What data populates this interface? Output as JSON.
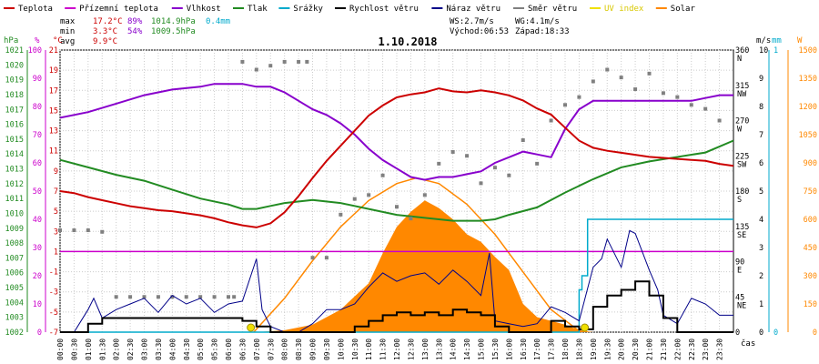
{
  "chart_data": {
    "type": "line",
    "title": "1.10.2018",
    "legend": [
      {
        "name": "Teplota",
        "color": "#cc0000"
      },
      {
        "name": "Přízemní teplota",
        "color": "#cc00cc"
      },
      {
        "name": "Vlhkost",
        "color": "#8800cc"
      },
      {
        "name": "Tlak",
        "color": "#228b22"
      },
      {
        "name": "Srážky",
        "color": "#00aacc"
      },
      {
        "name": "Rychlost větru",
        "color": "#000000"
      },
      {
        "name": "Náraz větru",
        "color": "#000088"
      },
      {
        "name": "Směr větru",
        "color": "#808080"
      },
      {
        "name": "UV index",
        "color": "#f0e000"
      },
      {
        "name": "Solar",
        "color": "#ff8800"
      }
    ],
    "stats": {
      "max": {
        "label": "max",
        "temp": "17.2°C",
        "hum": "89%",
        "press": "1014.9hPa",
        "rain": "0.4mm"
      },
      "min": {
        "label": "min",
        "temp": "3.3°C",
        "hum": "54%",
        "press": "1009.5hPa"
      },
      "avg": {
        "label": "avg",
        "temp": "9.9°C"
      },
      "ws": "WS:2.7m/s",
      "wg": "WG:4.1m/s",
      "sunrise": "Východ:06:53",
      "sunset": "Západ:18:33"
    },
    "x_axis_label": "čas",
    "x_ticks": [
      "00:00",
      "00:30",
      "01:00",
      "01:30",
      "02:00",
      "02:30",
      "03:00",
      "03:30",
      "04:00",
      "04:30",
      "05:00",
      "05:30",
      "06:00",
      "06:30",
      "07:00",
      "07:30",
      "08:00",
      "08:30",
      "09:00",
      "09:30",
      "10:00",
      "10:30",
      "11:00",
      "11:30",
      "12:00",
      "12:30",
      "13:00",
      "13:30",
      "14:00",
      "14:30",
      "15:00",
      "15:30",
      "16:00",
      "16:30",
      "17:00",
      "17:30",
      "18:00",
      "18:30",
      "19:00",
      "19:30",
      "20:00",
      "20:30",
      "21:00",
      "21:30",
      "22:00",
      "22:30",
      "23:00",
      "23:30"
    ],
    "axes": {
      "pressure": {
        "unit": "hPa",
        "ticks": [
          "1021",
          "1020",
          "1019",
          "1018",
          "1017",
          "1016",
          "1015",
          "1014",
          "1013",
          "1012",
          "1011",
          "1010",
          "1009",
          "1008",
          "1007",
          "1006",
          "1005",
          "1004",
          "1003",
          "1002"
        ]
      },
      "humidity": {
        "unit": "%",
        "ticks": [
          "100",
          "90",
          "80",
          "70",
          "60",
          "50",
          "40",
          "30",
          "20",
          "10",
          "0"
        ]
      },
      "temperature": {
        "unit": "°C",
        "ticks": [
          "21",
          "19",
          "17",
          "15",
          "13",
          "11",
          "9",
          "7",
          "5",
          "3",
          "1",
          "-1",
          "-3",
          "-5",
          "-7"
        ]
      },
      "direction": {
        "ticks": [
          "360",
          "N",
          "315",
          "NW",
          "270",
          "W",
          "225",
          "SW",
          "180",
          "S",
          "135",
          "SE",
          "90",
          "E",
          "45",
          "NE",
          "0"
        ]
      },
      "speed": {
        "unit": "m/s",
        "ticks": [
          "10",
          "9",
          "8",
          "7",
          "6",
          "5",
          "4",
          "3",
          "2",
          "1",
          "0"
        ]
      },
      "rain": {
        "unit": "mm",
        "ticks": [
          "1",
          "0"
        ]
      },
      "solar": {
        "unit": "W",
        "ticks": [
          "1500",
          "1350",
          "1200",
          "1050",
          "900",
          "750",
          "600",
          "450",
          "300",
          "150",
          "0"
        ]
      }
    },
    "series": {
      "teplota": {
        "x": [
          0,
          0.5,
          1,
          1.5,
          2,
          2.5,
          3,
          3.5,
          4,
          4.5,
          5,
          5.5,
          6,
          6.5,
          7,
          7.5,
          8,
          8.5,
          9,
          9.5,
          10,
          10.5,
          11,
          11.5,
          12,
          12.5,
          13,
          13.5,
          14,
          14.5,
          15,
          15.5,
          16,
          16.5,
          17,
          17.5,
          18,
          18.5,
          19,
          19.5,
          20,
          20.5,
          21,
          21.5,
          22,
          22.5,
          23,
          23.5,
          24
        ],
        "y": [
          7.0,
          6.8,
          6.4,
          6.1,
          5.8,
          5.5,
          5.3,
          5.1,
          5.0,
          4.8,
          4.6,
          4.3,
          3.9,
          3.6,
          3.4,
          3.8,
          4.9,
          6.5,
          8.3,
          10.0,
          11.5,
          13.0,
          14.5,
          15.5,
          16.3,
          16.6,
          16.8,
          17.2,
          16.9,
          16.8,
          17.0,
          16.8,
          16.5,
          16.0,
          15.2,
          14.6,
          13.3,
          12.0,
          11.3,
          11.0,
          10.8,
          10.6,
          10.4,
          10.3,
          10.2,
          10.1,
          10.0,
          9.7,
          9.5
        ]
      },
      "vlhkost": {
        "x": [
          0,
          1,
          2,
          3,
          4,
          5,
          5.5,
          6,
          6.5,
          7,
          7.5,
          8,
          8.5,
          9,
          9.5,
          10,
          10.5,
          11,
          11.5,
          12,
          12.5,
          13,
          13.5,
          14,
          14.5,
          15,
          15.5,
          16,
          16.5,
          17,
          17.5,
          18,
          18.5,
          19,
          19.5,
          20,
          20.5,
          21,
          21.5,
          22,
          22.5,
          23,
          23.5,
          24
        ],
        "y": [
          76,
          78,
          81,
          84,
          86,
          87,
          88,
          88,
          88,
          87,
          87,
          85,
          82,
          79,
          77,
          74,
          70,
          65,
          61,
          58,
          55,
          54,
          55,
          55,
          56,
          57,
          60,
          62,
          64,
          63,
          62,
          72,
          79,
          82,
          82,
          82,
          82,
          82,
          82,
          82,
          82,
          83,
          84,
          84
        ]
      },
      "tlak": {
        "x": [
          0,
          1,
          2,
          3,
          4,
          5,
          6,
          6.5,
          7,
          7.5,
          8,
          9,
          10,
          11,
          12,
          13,
          14,
          15,
          15.5,
          16,
          17,
          18,
          19,
          20,
          21,
          22,
          23,
          23.5,
          24
        ],
        "y": [
          1013.6,
          1013.1,
          1012.6,
          1012.2,
          1011.6,
          1011.0,
          1010.6,
          1010.3,
          1010.3,
          1010.5,
          1010.7,
          1010.9,
          1010.7,
          1010.3,
          1009.9,
          1009.7,
          1009.5,
          1009.5,
          1009.6,
          1009.9,
          1010.4,
          1011.4,
          1012.3,
          1013.1,
          1013.5,
          1013.8,
          1014.1,
          1014.5,
          1014.9
        ]
      },
      "srazky": {
        "x": [
          0,
          18.4,
          18.5,
          18.6,
          18.8,
          24
        ],
        "y": [
          0,
          0,
          0.15,
          0.2,
          0.4,
          0.4
        ]
      },
      "prizemni": {
        "y": 1.0
      },
      "rychlost": {
        "x": [
          0,
          0.5,
          1,
          1.5,
          2,
          2.5,
          3,
          3.5,
          4,
          4.5,
          5,
          5.5,
          6,
          6.5,
          7,
          7.5,
          8,
          8.5,
          9,
          9.5,
          10,
          10.5,
          11,
          11.5,
          12,
          12.5,
          13,
          13.5,
          14,
          14.5,
          15,
          15.5,
          16,
          16.5,
          17,
          17.5,
          18,
          18.5,
          19,
          19.5,
          20,
          20.5,
          21,
          21.5,
          22,
          22.5,
          23,
          23.5,
          24
        ],
        "y": [
          0,
          0,
          0.3,
          0.5,
          0.5,
          0.5,
          0.5,
          0.5,
          0.5,
          0.5,
          0.5,
          0.5,
          0.5,
          0.4,
          0.2,
          0,
          0,
          0,
          0,
          0,
          0,
          0.2,
          0.4,
          0.6,
          0.7,
          0.6,
          0.7,
          0.6,
          0.8,
          0.7,
          0.6,
          0.2,
          0,
          0,
          0,
          0.4,
          0.2,
          0.1,
          0.9,
          1.3,
          1.5,
          1.8,
          1.3,
          0.5,
          0,
          0,
          0,
          0,
          0
        ]
      },
      "naraz": {
        "x": [
          0,
          0.5,
          1,
          1.2,
          1.5,
          2,
          2.5,
          3,
          3.5,
          4,
          4.5,
          5,
          5.5,
          6,
          6.5,
          7,
          7.2,
          7.5,
          8,
          8.5,
          9,
          9.5,
          10,
          10.5,
          11,
          11.5,
          12,
          12.5,
          13,
          13.5,
          14,
          14.5,
          15,
          15.3,
          15.5,
          16,
          16.5,
          17,
          17.5,
          18,
          18.5,
          19,
          19.3,
          19.5,
          20,
          20.3,
          20.5,
          21,
          21.3,
          21.5,
          22,
          22.5,
          23,
          23.5,
          24
        ],
        "y": [
          0,
          0,
          0.8,
          1.2,
          0.5,
          0.8,
          1.0,
          1.2,
          0.7,
          1.3,
          1.0,
          1.2,
          0.7,
          1.0,
          1.1,
          2.6,
          0.8,
          0.2,
          0,
          0,
          0.3,
          0.8,
          0.8,
          1.0,
          1.6,
          2.1,
          1.8,
          2.0,
          2.1,
          1.7,
          2.2,
          1.8,
          1.3,
          2.8,
          0.4,
          0.3,
          0.2,
          0.3,
          0.9,
          0.7,
          0.4,
          2.3,
          2.6,
          3.3,
          2.3,
          3.6,
          3.5,
          2.2,
          1.5,
          0.6,
          0.3,
          1.2,
          1.0,
          0.6,
          0.6
        ]
      },
      "smer": {
        "x": [
          0,
          0.5,
          1,
          1.5,
          2,
          2.5,
          3,
          3.5,
          4,
          4.5,
          5,
          5.5,
          6,
          6.2,
          6.5,
          7,
          7.5,
          8,
          8.5,
          8.8,
          9,
          9.5,
          10,
          10.5,
          11,
          11.5,
          12,
          12.5,
          13,
          13.5,
          14,
          14.5,
          15,
          15.5,
          16,
          16.5,
          17,
          17.5,
          18,
          18.5,
          19,
          19.5,
          20,
          20.5,
          21,
          21.5,
          22,
          22.5,
          23,
          23.5
        ],
        "y": [
          130,
          130,
          130,
          128,
          45,
          45,
          45,
          45,
          45,
          45,
          45,
          45,
          45,
          45,
          345,
          335,
          340,
          345,
          345,
          345,
          95,
          95,
          150,
          170,
          175,
          200,
          160,
          145,
          175,
          215,
          230,
          225,
          190,
          210,
          200,
          245,
          215,
          270,
          290,
          300,
          320,
          335,
          325,
          310,
          330,
          305,
          300,
          290,
          285,
          270
        ]
      },
      "solar": {
        "x": [
          0,
          7,
          8,
          9,
          10,
          11,
          11.5,
          12,
          12.5,
          13,
          13.5,
          14,
          14.5,
          15,
          15.5,
          16,
          16.5,
          17,
          17.5,
          18,
          18.5,
          19,
          24
        ],
        "y": [
          0,
          0,
          10,
          40,
          120,
          260,
          420,
          560,
          640,
          700,
          660,
          600,
          520,
          480,
          400,
          330,
          150,
          80,
          60,
          40,
          10,
          0,
          0
        ]
      },
      "solar_theoretical": {
        "x": [
          6.9,
          8,
          9,
          10,
          11,
          12,
          12.7,
          13.5,
          14.5,
          15.5,
          16.5,
          17.5,
          18.55
        ],
        "y": [
          0,
          180,
          380,
          560,
          700,
          790,
          820,
          790,
          680,
          520,
          320,
          120,
          0
        ]
      },
      "uv": {
        "markers_x": [
          6.8,
          18.7
        ]
      }
    }
  }
}
